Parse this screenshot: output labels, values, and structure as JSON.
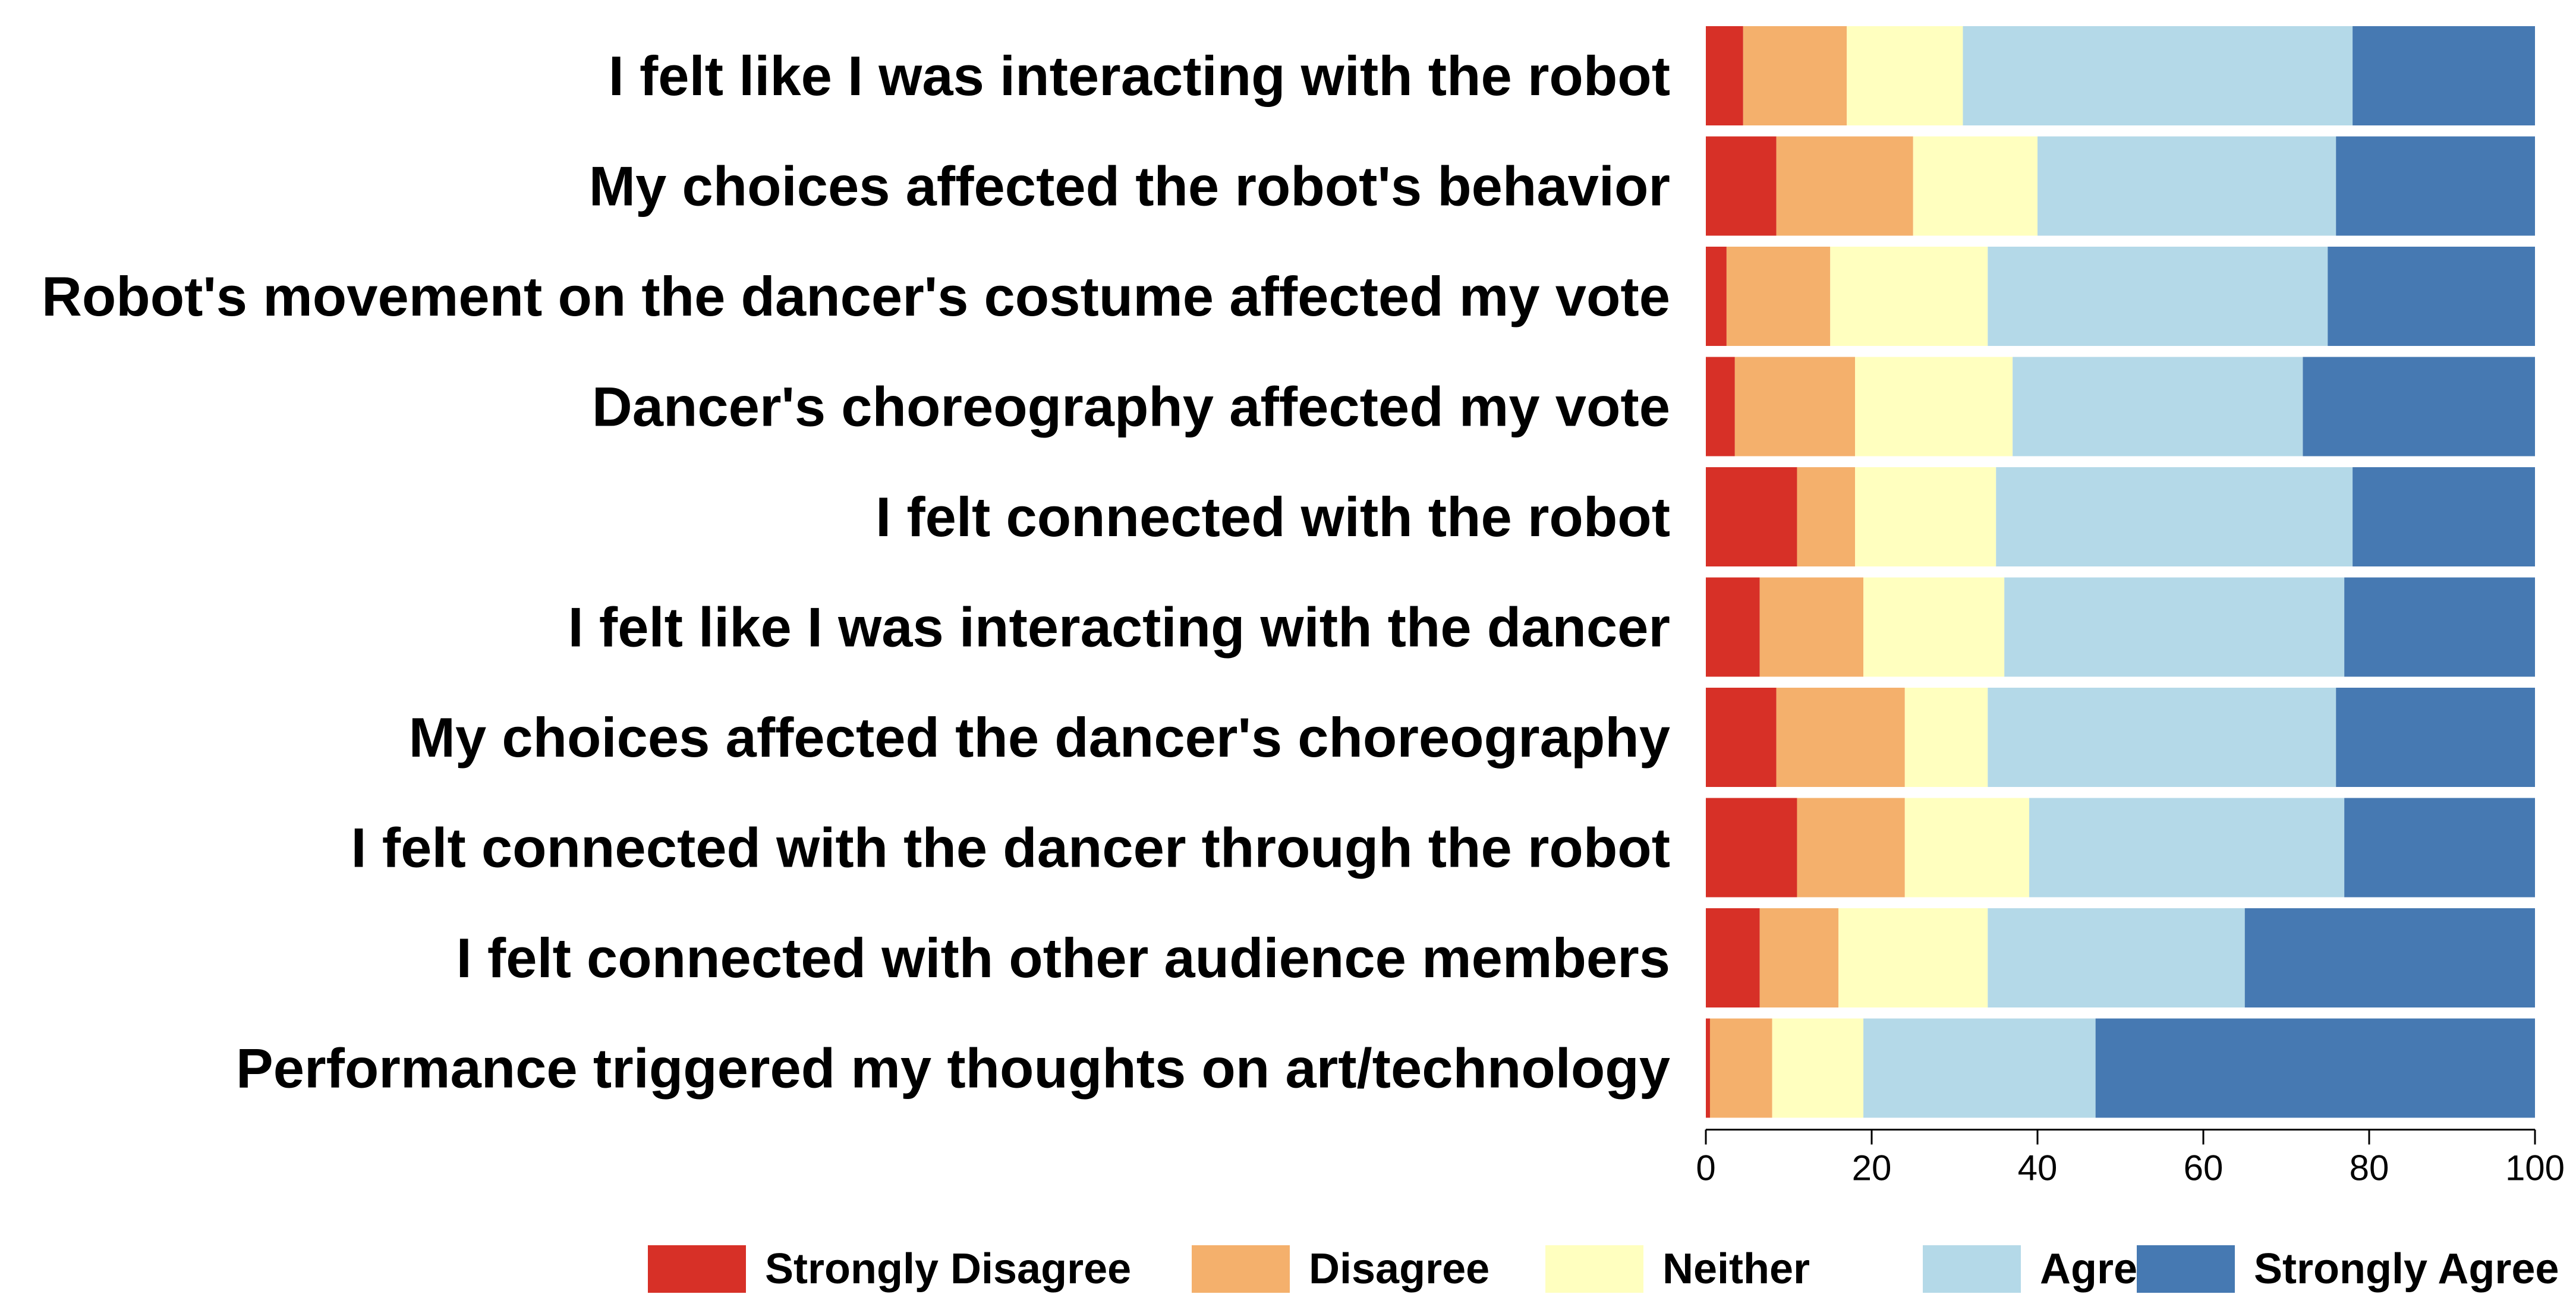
{
  "chart_data": {
    "type": "bar",
    "orientation": "horizontal",
    "stacked": true,
    "categories": [
      "I felt like I was interacting with the robot",
      "My choices affected the robot's behavior",
      "Robot's movement on the dancer's costume affected my vote",
      "Dancer's choreography affected my vote",
      "I felt connected with the robot",
      "I felt like I was interacting with the dancer",
      "My choices affected the dancer's choreography",
      "I felt connected with the dancer through the robot",
      "I felt connected with other audience members",
      "Performance triggered my thoughts on art/technology"
    ],
    "series": [
      {
        "name": "Strongly Disagree",
        "color": "#d73027",
        "values": [
          4.5,
          8.5,
          2.5,
          3.5,
          11,
          6.5,
          8.5,
          11,
          6.5,
          0.5
        ]
      },
      {
        "name": "Disagree",
        "color": "#f4b06c",
        "values": [
          12.5,
          16.5,
          12.5,
          14.5,
          7,
          12.5,
          15.5,
          13,
          9.5,
          7.5
        ]
      },
      {
        "name": "Neither",
        "color": "#ffffbf",
        "values": [
          14,
          15,
          19,
          19,
          17,
          17,
          10,
          15,
          18,
          11
        ]
      },
      {
        "name": "Agree",
        "color": "#b4d9e8",
        "values": [
          47,
          36,
          41,
          35,
          43,
          41,
          42,
          38,
          31,
          28
        ]
      },
      {
        "name": "Strongly Agree",
        "color": "#4679b2",
        "values": [
          22,
          24,
          25,
          28,
          22,
          23,
          24,
          23,
          35,
          53
        ]
      }
    ],
    "xlim": [
      0,
      100
    ],
    "xticks": [
      "0",
      "20",
      "40",
      "60",
      "80",
      "100"
    ],
    "legend_position": "bottom"
  }
}
